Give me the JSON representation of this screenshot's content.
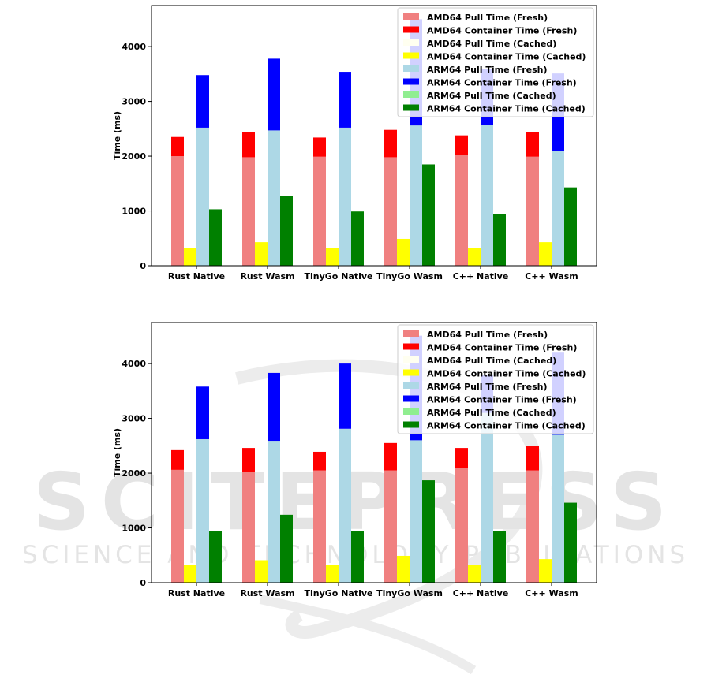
{
  "watermark": {
    "brand": "SCITEPRESS",
    "tagline": "SCIENCE AND TECHNOLOGY PUBLICATIONS"
  },
  "chart_data": [
    {
      "type": "bar",
      "stacked": "pairs",
      "title": "",
      "xlabel": "",
      "ylabel": "Time (ms)",
      "ylim": [
        0,
        4750
      ],
      "yticks": [
        0,
        1000,
        2000,
        3000,
        4000
      ],
      "grid": false,
      "legend_position": "top-right",
      "categories": [
        "Rust Native",
        "Rust Wasm",
        "TinyGo Native",
        "TinyGo Wasm",
        "C++ Native",
        "C++ Wasm"
      ],
      "series": [
        {
          "name": "AMD64 Pull Time (Fresh)",
          "group": "AMD64 Fresh",
          "color": "#f08080",
          "values": [
            2000,
            1980,
            1990,
            1980,
            2020,
            1990
          ]
        },
        {
          "name": "AMD64 Container Time (Fresh)",
          "group": "AMD64 Fresh",
          "color": "#ff0000",
          "values": [
            350,
            460,
            350,
            500,
            360,
            450
          ]
        },
        {
          "name": "AMD64 Pull Time (Cached)",
          "group": "AMD64 Cached",
          "color": "#fffff0",
          "values": [
            0,
            0,
            0,
            0,
            0,
            0
          ]
        },
        {
          "name": "AMD64 Container Time (Cached)",
          "group": "AMD64 Cached",
          "color": "#ffff00",
          "values": [
            330,
            430,
            330,
            490,
            330,
            430
          ]
        },
        {
          "name": "ARM64 Pull Time (Fresh)",
          "group": "ARM64 Fresh",
          "color": "#add8e6",
          "values": [
            2520,
            2470,
            2520,
            2560,
            2570,
            2090
          ]
        },
        {
          "name": "ARM64 Container Time (Fresh)",
          "group": "ARM64 Fresh",
          "color": "#0000ff",
          "values": [
            960,
            1310,
            1020,
            1940,
            1020,
            1420
          ]
        },
        {
          "name": "ARM64 Pull Time (Cached)",
          "group": "ARM64 Cached",
          "color": "#90ee90",
          "values": [
            0,
            0,
            0,
            0,
            0,
            0
          ]
        },
        {
          "name": "ARM64 Container Time (Cached)",
          "group": "ARM64 Cached",
          "color": "#008000",
          "values": [
            1030,
            1270,
            990,
            1850,
            950,
            1430
          ]
        }
      ]
    },
    {
      "type": "bar",
      "stacked": "pairs",
      "title": "",
      "xlabel": "",
      "ylabel": "Time (ms)",
      "ylim": [
        0,
        4750
      ],
      "yticks": [
        0,
        1000,
        2000,
        3000,
        4000
      ],
      "grid": false,
      "legend_position": "top-right",
      "categories": [
        "Rust Native",
        "Rust Wasm",
        "TinyGo Native",
        "TinyGo Wasm",
        "C++ Native",
        "C++ Wasm"
      ],
      "series": [
        {
          "name": "AMD64 Pull Time (Fresh)",
          "group": "AMD64 Fresh",
          "color": "#f08080",
          "values": [
            2060,
            2020,
            2050,
            2050,
            2100,
            2050
          ]
        },
        {
          "name": "AMD64 Container Time (Fresh)",
          "group": "AMD64 Fresh",
          "color": "#ff0000",
          "values": [
            360,
            440,
            340,
            500,
            360,
            440
          ]
        },
        {
          "name": "AMD64 Pull Time (Cached)",
          "group": "AMD64 Cached",
          "color": "#fffff0",
          "values": [
            0,
            0,
            0,
            0,
            0,
            0
          ]
        },
        {
          "name": "AMD64 Container Time (Cached)",
          "group": "AMD64 Cached",
          "color": "#ffff00",
          "values": [
            330,
            410,
            330,
            490,
            330,
            430
          ]
        },
        {
          "name": "ARM64 Pull Time (Fresh)",
          "group": "ARM64 Fresh",
          "color": "#add8e6",
          "values": [
            2620,
            2590,
            2810,
            2600,
            3100,
            2700
          ]
        },
        {
          "name": "ARM64 Container Time (Fresh)",
          "group": "ARM64 Fresh",
          "color": "#0000ff",
          "values": [
            960,
            1240,
            1190,
            1910,
            700,
            1500
          ]
        },
        {
          "name": "ARM64 Pull Time (Cached)",
          "group": "ARM64 Cached",
          "color": "#90ee90",
          "values": [
            0,
            0,
            0,
            0,
            0,
            0
          ]
        },
        {
          "name": "ARM64 Container Time (Cached)",
          "group": "ARM64 Cached",
          "color": "#008000",
          "values": [
            940,
            1240,
            940,
            1870,
            940,
            1460
          ]
        }
      ]
    }
  ]
}
